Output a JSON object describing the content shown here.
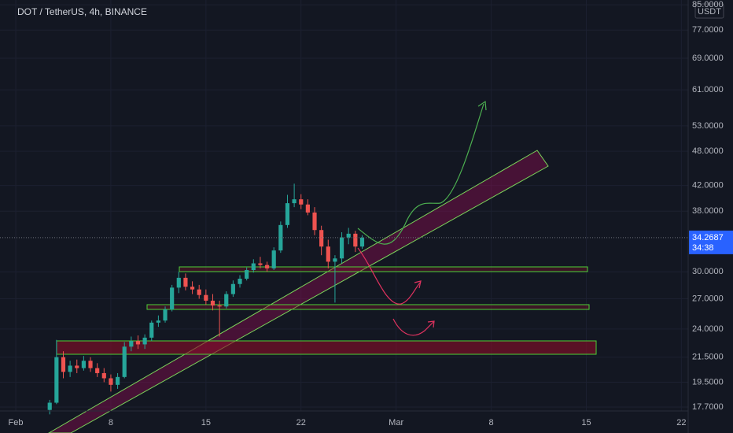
{
  "chart_data": {
    "type": "candlestick",
    "title": "DOT / TetherUS, 4h, BINANCE",
    "currency": "USDT",
    "log_scale": true,
    "grid": true,
    "up_color": "#26a69a",
    "down_color": "#ef5350",
    "x": [
      2.5,
      3,
      3.5,
      4,
      4.5,
      5,
      5.5,
      6,
      6.5,
      7,
      7.5,
      8,
      8.5,
      9,
      9.5,
      10,
      10.5,
      11,
      11.5,
      12,
      12.5,
      13,
      13.5,
      14,
      14.5,
      15,
      15.5,
      16,
      16.5,
      17,
      17.5,
      18,
      18.5,
      19,
      19.5,
      20,
      20.5,
      21,
      21.5,
      22,
      22.5,
      23,
      23.5,
      24,
      24.5,
      25,
      25.5
    ],
    "open": [
      17.5,
      18.0,
      21.5,
      20.3,
      20.8,
      20.6,
      21.2,
      20.6,
      20.2,
      19.8,
      19.3,
      19.9,
      22.4,
      22.9,
      22.6,
      23.2,
      24.6,
      24.8,
      25.9,
      28.2,
      29.3,
      28.3,
      28.0,
      27.4,
      26.8,
      26.3,
      26.2,
      27.5,
      28.6,
      29.2,
      30.2,
      31.0,
      30.8,
      30.4,
      32.6,
      36.0,
      39.2,
      39.8,
      39.0,
      37.8,
      35.3,
      33.1,
      31.2,
      31.6,
      34.3,
      34.8,
      33.1
    ],
    "high": [
      18.2,
      23.0,
      22.0,
      21.2,
      21.3,
      21.6,
      21.5,
      21.0,
      20.6,
      20.1,
      20.2,
      22.8,
      23.3,
      23.4,
      23.5,
      24.8,
      25.3,
      26.2,
      28.5,
      30.0,
      29.8,
      28.9,
      28.5,
      28.0,
      27.5,
      26.8,
      27.8,
      29.0,
      29.6,
      30.5,
      31.5,
      31.8,
      31.2,
      33.0,
      36.5,
      40.5,
      42.3,
      40.6,
      39.8,
      38.6,
      35.9,
      34.0,
      32.0,
      35.0,
      35.6,
      35.2,
      34.6
    ],
    "low": [
      17.2,
      17.9,
      19.8,
      19.9,
      20.2,
      20.4,
      20.3,
      19.9,
      19.5,
      18.8,
      19.0,
      19.8,
      22.0,
      22.2,
      22.2,
      22.9,
      24.2,
      24.6,
      25.7,
      27.6,
      27.9,
      27.5,
      27.0,
      26.4,
      25.8,
      23.3,
      26.0,
      27.2,
      28.2,
      29.0,
      29.9,
      30.4,
      30.0,
      30.2,
      32.3,
      35.6,
      38.6,
      38.3,
      37.4,
      34.6,
      32.0,
      30.4,
      26.6,
      31.0,
      33.4,
      32.4,
      32.8
    ],
    "close": [
      18.0,
      21.5,
      20.3,
      20.8,
      20.6,
      21.2,
      20.6,
      20.2,
      19.8,
      19.3,
      19.9,
      22.4,
      22.9,
      22.6,
      23.2,
      24.6,
      24.8,
      25.9,
      28.2,
      29.3,
      28.3,
      28.0,
      27.4,
      26.8,
      26.3,
      26.2,
      27.5,
      28.6,
      29.2,
      30.2,
      31.0,
      30.8,
      30.4,
      32.6,
      36.0,
      39.2,
      39.8,
      39.0,
      37.8,
      35.3,
      33.1,
      31.2,
      31.6,
      34.3,
      34.8,
      33.1,
      34.2687
    ],
    "last_price": {
      "value": 34.2687,
      "label": "34.2687"
    },
    "countdown": "34:38",
    "last_price_color": "#2962ff",
    "xlim": [
      -1.16,
      49.5
    ],
    "ylim": [
      17.43,
      86.6
    ],
    "xticks": [
      {
        "value": 0,
        "label": "Feb"
      },
      {
        "value": 7,
        "label": "8"
      },
      {
        "value": 14,
        "label": "15"
      },
      {
        "value": 21,
        "label": "22"
      },
      {
        "value": 28,
        "label": "Mar"
      },
      {
        "value": 35,
        "label": "8"
      },
      {
        "value": 42,
        "label": "15"
      },
      {
        "value": 49,
        "label": "22"
      }
    ],
    "yticks": [
      {
        "value": 17.7,
        "label": "17.7000"
      },
      {
        "value": 19.5,
        "label": "19.5000"
      },
      {
        "value": 21.5,
        "label": "21.5000"
      },
      {
        "value": 24,
        "label": "24.0000"
      },
      {
        "value": 27,
        "label": "27.0000"
      },
      {
        "value": 30,
        "label": "30.0000"
      },
      {
        "value": 38,
        "label": "38.0000"
      },
      {
        "value": 42,
        "label": "42.0000"
      },
      {
        "value": 48,
        "label": "48.0000"
      },
      {
        "value": 53,
        "label": "53.0000"
      },
      {
        "value": 61,
        "label": "61.0000"
      },
      {
        "value": 69,
        "label": "69.0000"
      },
      {
        "value": 77,
        "label": "77.0000"
      },
      {
        "value": 85,
        "label": "85.0000"
      }
    ]
  }
}
